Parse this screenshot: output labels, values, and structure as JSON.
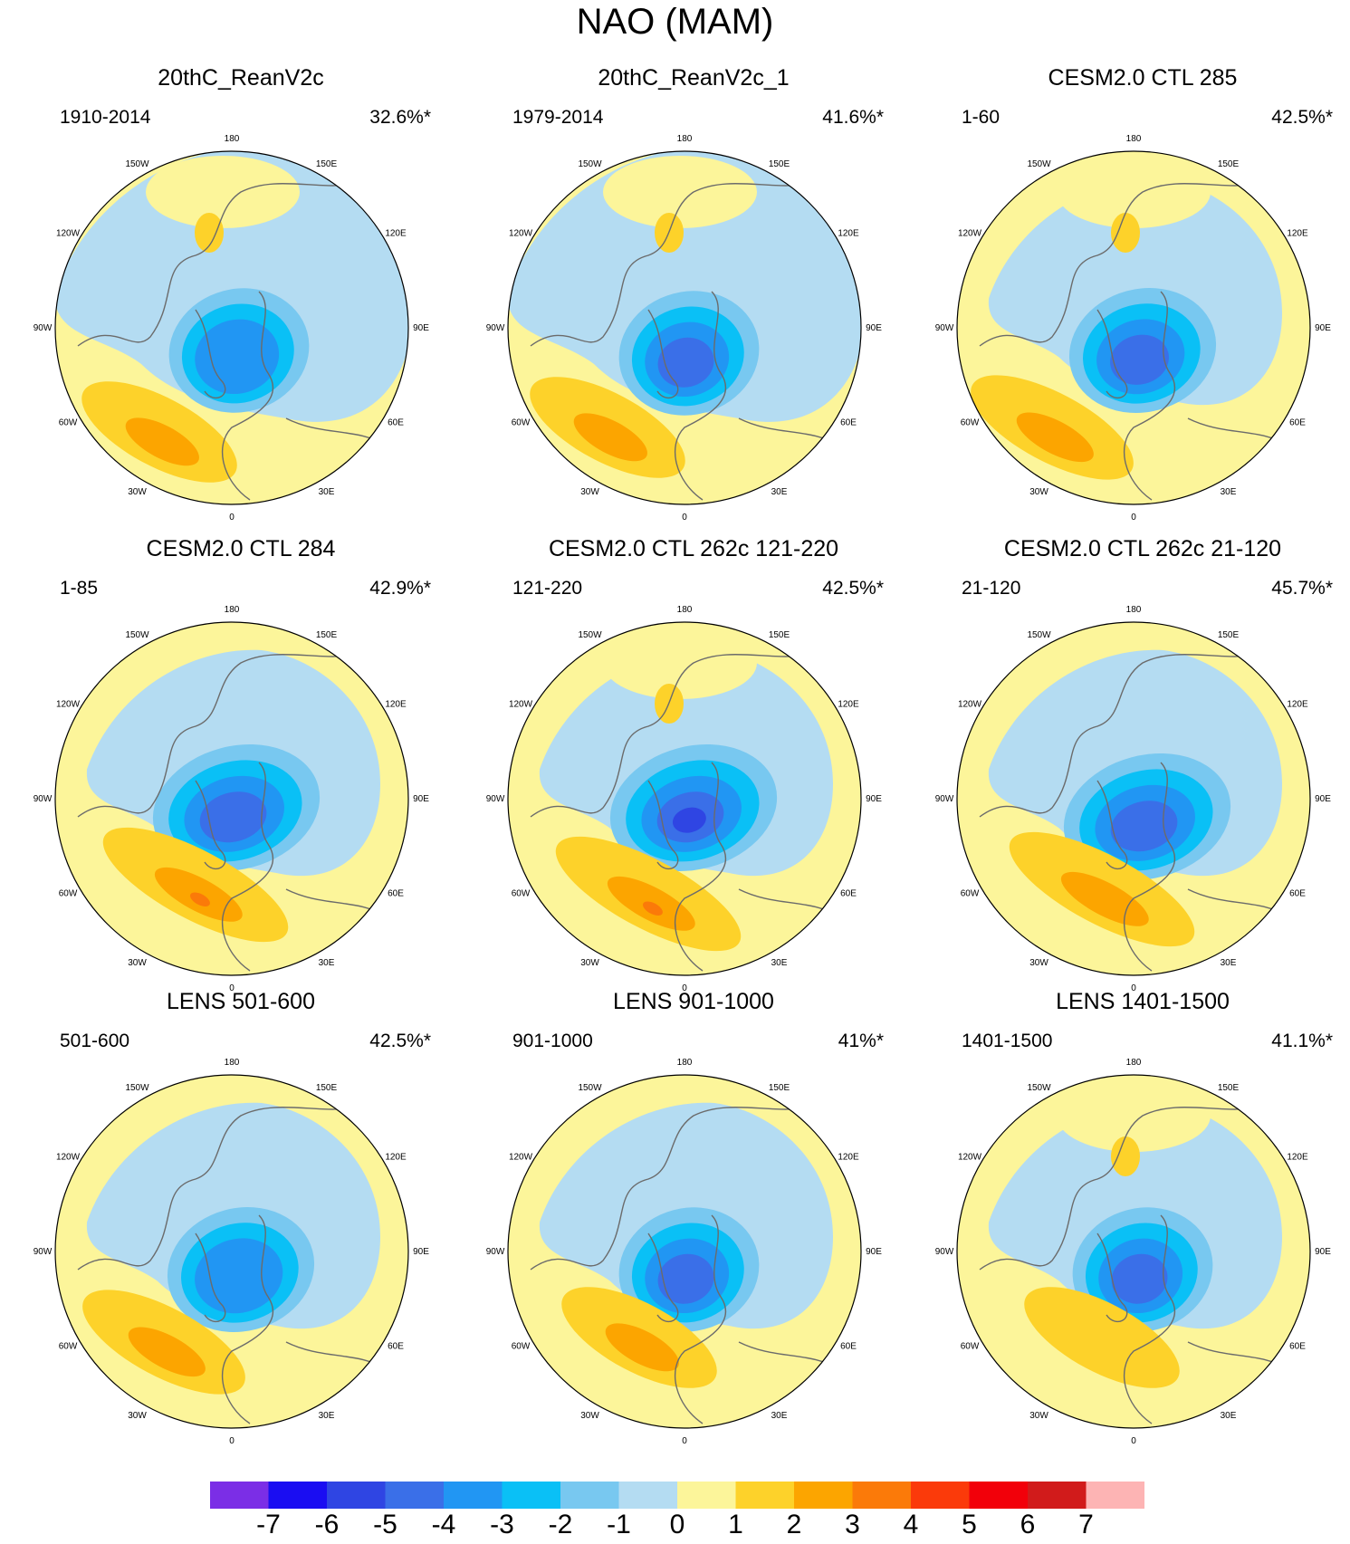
{
  "title": "NAO (MAM)",
  "longitude_labels": {
    "180": "180",
    "150E": "150E",
    "120E": "120E",
    "90E": "90E",
    "60E": "60E",
    "30E": "30E",
    "0": "0",
    "30W": "30W",
    "60W": "60W",
    "90W": "90W",
    "120W": "120W",
    "150W": "150W"
  },
  "panels": [
    {
      "title": "20thC_ReanV2c",
      "period": "1910-2014",
      "variance": "32.6%*"
    },
    {
      "title": "20thC_ReanV2c_1",
      "period": "1979-2014",
      "variance": "41.6%*"
    },
    {
      "title": "CESM2.0 CTL 285",
      "period": "1-60",
      "variance": "42.5%*"
    },
    {
      "title": "CESM2.0 CTL 284",
      "period": "1-85",
      "variance": "42.9%*"
    },
    {
      "title": "CESM2.0 CTL 262c 121-220",
      "period": "121-220",
      "variance": "42.5%*"
    },
    {
      "title": "CESM2.0 CTL 262c 21-120",
      "period": "21-120",
      "variance": "45.7%*"
    },
    {
      "title": "LENS 501-600",
      "period": "501-600",
      "variance": "42.5%*"
    },
    {
      "title": "LENS 901-1000",
      "period": "901-1000",
      "variance": "41%*"
    },
    {
      "title": "LENS 1401-1500",
      "period": "1401-1500",
      "variance": "41.1%*"
    }
  ],
  "colorbar": {
    "ticks": [
      "-7",
      "-6",
      "-5",
      "-4",
      "-3",
      "-2",
      "-1",
      "0",
      "1",
      "2",
      "3",
      "4",
      "5",
      "6",
      "7"
    ],
    "colors": [
      "#7b2ee6",
      "#1a0df2",
      "#2f45e3",
      "#3a6fe8",
      "#2196f3",
      "#0ac0f6",
      "#78c8f0",
      "#b4dcf2",
      "#fcf59a",
      "#fdd22a",
      "#fca500",
      "#fb7a09",
      "#fb3a0a",
      "#f2000a",
      "#d11b1b",
      "#fdb4b4"
    ]
  },
  "chart_data": {
    "type": "polar stereographic contour maps (NAO EOF pattern)",
    "title": "NAO (MAM)",
    "projection": "north polar stereographic, 0 at bottom, 180 at top",
    "contour_levels": [
      -7,
      -6,
      -5,
      -4,
      -3,
      -2,
      -1,
      0,
      1,
      2,
      3,
      4,
      5,
      6,
      7
    ],
    "panels": [
      {
        "name": "20thC_ReanV2c",
        "period": "1910-2014",
        "variance_percent": 32.6,
        "significant": true,
        "min_center_value": -4,
        "max_center_value": 3
      },
      {
        "name": "20thC_ReanV2c_1",
        "period": "1979-2014",
        "variance_percent": 41.6,
        "significant": true,
        "min_center_value": -5,
        "max_center_value": 3
      },
      {
        "name": "CESM2.0 CTL 285",
        "period": "1-60",
        "variance_percent": 42.5,
        "significant": true,
        "min_center_value": -5,
        "max_center_value": 3
      },
      {
        "name": "CESM2.0 CTL 284",
        "period": "1-85",
        "variance_percent": 42.9,
        "significant": true,
        "min_center_value": -5,
        "max_center_value": 4
      },
      {
        "name": "CESM2.0 CTL 262c 121-220",
        "period": "121-220",
        "variance_percent": 42.5,
        "significant": true,
        "min_center_value": -6,
        "max_center_value": 4
      },
      {
        "name": "CESM2.0 CTL 262c 21-120",
        "period": "21-120",
        "variance_percent": 45.7,
        "significant": true,
        "min_center_value": -5,
        "max_center_value": 3
      },
      {
        "name": "LENS 501-600",
        "period": "501-600",
        "variance_percent": 42.5,
        "significant": true,
        "min_center_value": -4,
        "max_center_value": 3
      },
      {
        "name": "LENS 901-1000",
        "period": "901-1000",
        "variance_percent": 41.0,
        "significant": true,
        "min_center_value": -5,
        "max_center_value": 3
      },
      {
        "name": "LENS 1401-1500",
        "period": "1401-1500",
        "variance_percent": 41.1,
        "significant": true,
        "min_center_value": -5,
        "max_center_value": 2
      }
    ]
  }
}
